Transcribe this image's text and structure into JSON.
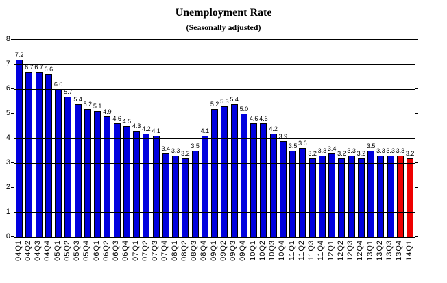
{
  "chart_data": {
    "type": "bar",
    "title": "Unemployment Rate",
    "subtitle": "(Seasonally adjusted)",
    "xlabel": "",
    "ylabel": "",
    "categories": [
      "04Q1",
      "04Q2",
      "04Q3",
      "04Q4",
      "05Q1",
      "05Q2",
      "05Q3",
      "05Q4",
      "06Q1",
      "06Q2",
      "06Q3",
      "06Q4",
      "07Q1",
      "07Q2",
      "07Q3",
      "07Q4",
      "08Q1",
      "08Q2",
      "08Q3",
      "08Q4",
      "09Q1",
      "09Q2",
      "09Q3",
      "09Q4",
      "10Q1",
      "10Q2",
      "10Q3",
      "10Q4",
      "11Q1",
      "11Q2",
      "11Q3",
      "11Q4",
      "12Q1",
      "12Q2",
      "12Q3",
      "12Q4",
      "13Q1",
      "13Q2",
      "13Q3",
      "13Q4",
      "14Q1"
    ],
    "values": [
      7.2,
      6.7,
      6.7,
      6.6,
      6.0,
      5.7,
      5.4,
      5.2,
      5.1,
      4.9,
      4.6,
      4.5,
      4.3,
      4.2,
      4.1,
      3.4,
      3.3,
      3.2,
      3.5,
      4.1,
      5.2,
      5.3,
      5.4,
      5.0,
      4.6,
      4.6,
      4.2,
      3.9,
      3.5,
      3.6,
      3.2,
      3.3,
      3.4,
      3.2,
      3.3,
      3.2,
      3.5,
      3.3,
      3.3,
      3.3,
      3.2
    ],
    "value_label_decimals": 1,
    "highlight_last_n": 2,
    "highlighted_categories": [
      "13Q4",
      "14Q1"
    ],
    "ylim": [
      0,
      8
    ],
    "yticks": [
      0,
      1,
      2,
      3,
      4,
      5,
      6,
      7,
      8
    ],
    "grid": "horizontal",
    "legend": "none",
    "colors": {
      "bar_default": "#0000DE",
      "bar_highlight": "#EE0000",
      "axis": "#000000",
      "background": "#FFFFFF"
    }
  }
}
